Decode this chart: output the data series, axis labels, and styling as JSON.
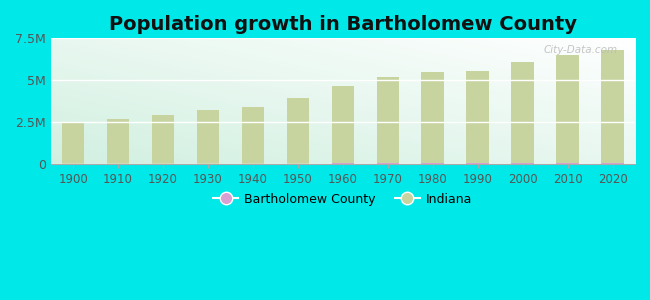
{
  "title": "Population growth in Bartholomew County",
  "years": [
    1900,
    1910,
    1920,
    1930,
    1940,
    1950,
    1960,
    1970,
    1980,
    1990,
    2000,
    2010,
    2020
  ],
  "indiana_values": [
    2516462,
    2700876,
    2930390,
    3238503,
    3427796,
    3934224,
    4662498,
    5193669,
    5490224,
    5544159,
    6080485,
    6483802,
    6785528
  ],
  "bartholomew_actual": [
    22632,
    27006,
    32083,
    34127,
    35038,
    40234,
    48198,
    57022,
    65294,
    63657,
    71435,
    79168,
    83779
  ],
  "indiana_color": "#c8d4a0",
  "bartholomew_color": "#d9a0d4",
  "background_outer": "#00e8e8",
  "background_inner_top": "#ffffff",
  "background_inner_bottom": "#d0f0e0",
  "ylim": [
    0,
    7500000
  ],
  "yticks": [
    0,
    2500000,
    5000000,
    7500000
  ],
  "ytick_labels": [
    "0",
    "2.5M",
    "5M",
    "7.5M"
  ],
  "bar_width": 0.5,
  "title_fontsize": 14,
  "watermark": "City-Data.com"
}
